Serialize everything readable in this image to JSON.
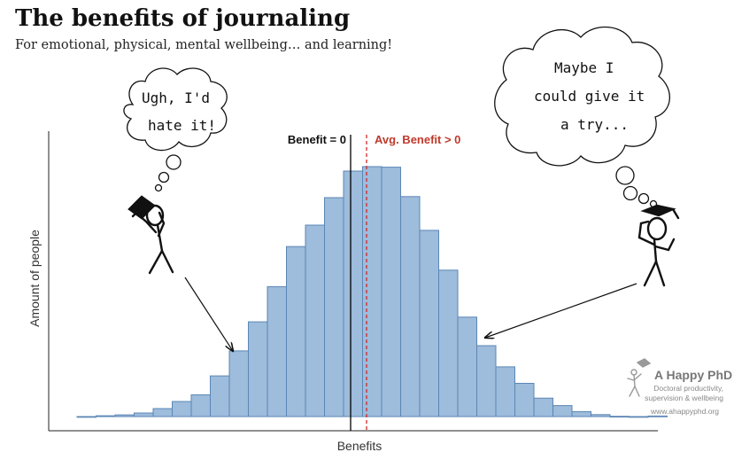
{
  "header": {
    "title": "The benefits of journaling",
    "subtitle": "For emotional, physical, mental wellbeing… and learning!"
  },
  "bubbles": {
    "left": [
      "Ugh, I'd",
      "hate it!"
    ],
    "right": [
      "Maybe I",
      "could give it",
      "a try..."
    ]
  },
  "colors": {
    "bar_fill": "#9ebcdb",
    "bar_stroke": "#5b86b5",
    "zero_line": "#000000",
    "avg_line": "#d62728",
    "benefit_zero_text": "#111111",
    "avg_benefit_text": "#c0392b"
  },
  "logo": {
    "name": "A Happy PhD",
    "tagline_1": "Doctoral productivity,",
    "tagline_2": "supervision & wellbeing",
    "url": "www.ahappyphd.org"
  },
  "chart_data": {
    "type": "bar",
    "xlabel": "Benefits",
    "ylabel": "Amount of people",
    "annotations": {
      "zero_label": "Benefit = 0",
      "avg_label": "Avg. Benefit > 0"
    },
    "values": [
      0,
      0.3,
      0.6,
      1.3,
      2.9,
      5.5,
      7.9,
      14.8,
      23.9,
      34.5,
      47.3,
      61.9,
      69.7,
      79.7,
      89.4,
      91.0,
      90.8,
      80.1,
      67.8,
      53.3,
      36.2,
      25.8,
      18.1,
      12.1,
      6.7,
      4.0,
      1.8,
      0.7,
      0.1,
      0,
      0.2
    ]
  }
}
